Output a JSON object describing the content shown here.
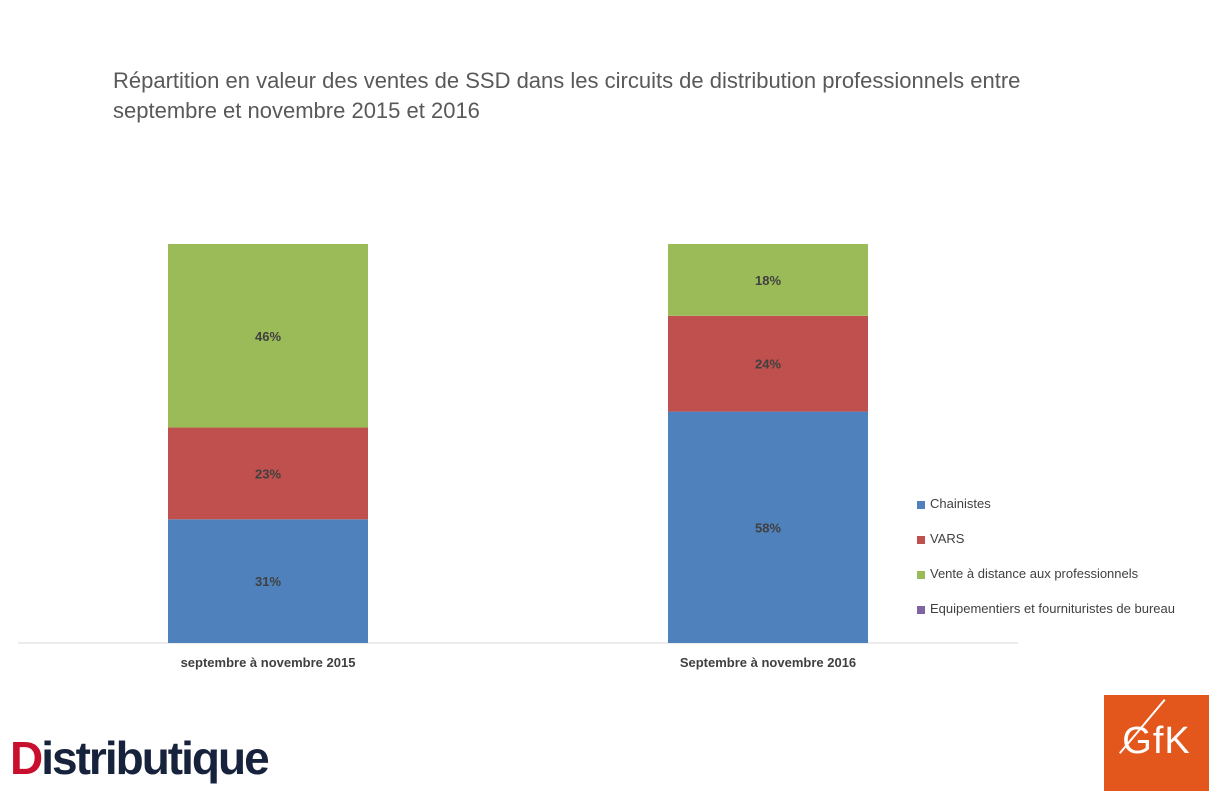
{
  "chart_data": {
    "type": "bar",
    "stacked": true,
    "normalized": true,
    "title": "Répartition en valeur des ventes de SSD dans les circuits de distribution professionnels entre septembre et novembre 2015 et 2016",
    "categories": [
      "septembre à novembre  2015",
      "Septembre à novembre 2016"
    ],
    "series": [
      {
        "name": "Chainistes",
        "color": "#4f81bd",
        "values": [
          31,
          58
        ],
        "labels": [
          "31%",
          "58%"
        ]
      },
      {
        "name": "VARS",
        "color": "#c0504d",
        "values": [
          23,
          24
        ],
        "labels": [
          "23%",
          "24%"
        ]
      },
      {
        "name": "Vente à distance aux professionnels",
        "color": "#9bbb59",
        "values": [
          46,
          18
        ],
        "labels": [
          "46%",
          "18%"
        ]
      },
      {
        "name": "Equipementiers et fournituristes de bureau",
        "color": "#8064a2",
        "values": [
          0,
          0
        ],
        "labels": [
          "",
          ""
        ]
      }
    ],
    "ylim": [
      0,
      100
    ],
    "legend_position": "right",
    "grid": false
  },
  "branding": {
    "left_logo_first": "D",
    "left_logo_rest": "istributique",
    "right_logo": "GfK"
  }
}
